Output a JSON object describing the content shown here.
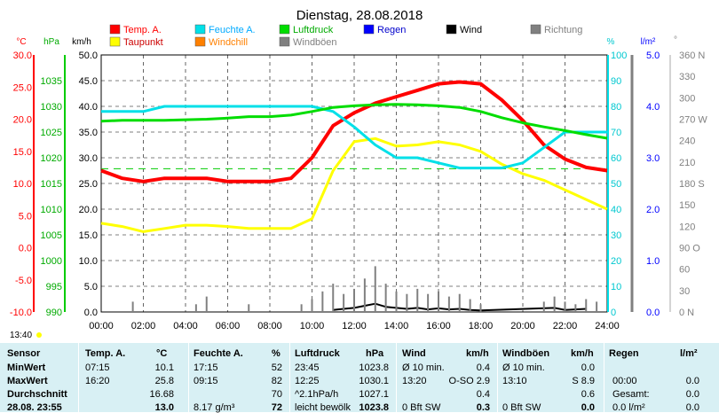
{
  "chart_data": {
    "type": "line",
    "title": "Dienstag, 28.08.2018",
    "x_ticks": [
      "00:00",
      "02:00",
      "04:00",
      "06:00",
      "08:00",
      "10:00",
      "12:00",
      "14:00",
      "16:00",
      "18:00",
      "20:00",
      "22:00",
      "24:00"
    ],
    "axes": {
      "temp_c": {
        "label": "°C",
        "ticks": [
          "30.0",
          "25.0",
          "20.0",
          "15.0",
          "10.0",
          "5.0",
          "0.0",
          "-5.0",
          "-10.0"
        ],
        "range": [
          -10,
          30
        ]
      },
      "pressure_hpa": {
        "label": "hPa",
        "ticks": [
          "1035",
          "1030",
          "1025",
          "1020",
          "1015",
          "1010",
          "1005",
          "1000",
          "995",
          "990"
        ],
        "range": [
          990,
          1040
        ]
      },
      "wind_kmh": {
        "label": "km/h",
        "ticks": [
          "50.0",
          "45.0",
          "40.0",
          "35.0",
          "30.0",
          "25.0",
          "20.0",
          "15.0",
          "10.0",
          "5.0",
          "0.0"
        ],
        "range": [
          0,
          50
        ]
      },
      "humidity_pct": {
        "label": "%",
        "ticks": [
          "100",
          "90",
          "80",
          "70",
          "60",
          "50",
          "40",
          "30",
          "20",
          "10",
          "0"
        ],
        "range": [
          0,
          100
        ]
      },
      "rain_lm2": {
        "label": "l/m²",
        "ticks": [
          "5.0",
          "4.0",
          "3.0",
          "2.0",
          "1.0",
          "0.0"
        ],
        "range": [
          0,
          5
        ]
      },
      "direction": {
        "label": "°",
        "ticks": [
          "360 N",
          "330",
          "300",
          "270 W",
          "240",
          "210",
          "180 S",
          "150",
          "120",
          "90 O",
          "60",
          "30",
          "0 N"
        ],
        "range": [
          0,
          360
        ]
      }
    },
    "legend": [
      {
        "name": "Temp. A.",
        "color": "#ff0000"
      },
      {
        "name": "Feuchte A.",
        "color": "#00e0e8"
      },
      {
        "name": "Luftdruck",
        "color": "#00dd00"
      },
      {
        "name": "Regen",
        "color": "#0000ff"
      },
      {
        "name": "Wind",
        "color": "#000000"
      },
      {
        "name": "Richtung",
        "color": "#808080"
      },
      {
        "name": "Taupunkt",
        "color": "#ffff00"
      },
      {
        "name": "Windchill",
        "color": "#ff8000"
      },
      {
        "name": "Windböen",
        "color": "#808080"
      }
    ],
    "series": [
      {
        "name": "Temp. A.",
        "axis": "temp_c",
        "x": [
          0,
          1,
          2,
          3,
          4,
          5,
          6,
          7,
          8,
          9,
          10,
          11,
          12,
          13,
          14,
          15,
          16,
          17,
          18,
          19,
          20,
          21,
          22,
          23,
          24
        ],
        "values": [
          12.0,
          10.8,
          10.3,
          10.8,
          10.8,
          10.8,
          10.3,
          10.3,
          10.3,
          10.8,
          14.0,
          19.0,
          21.0,
          22.5,
          23.5,
          24.5,
          25.5,
          25.8,
          25.5,
          23.0,
          19.8,
          16.0,
          13.8,
          12.5,
          12.0
        ]
      },
      {
        "name": "Taupunkt",
        "axis": "temp_c",
        "x": [
          0,
          1,
          2,
          3,
          4,
          5,
          6,
          7,
          8,
          9,
          10,
          11,
          12,
          13,
          14,
          15,
          16,
          17,
          18,
          19,
          20,
          21,
          22,
          23,
          24
        ],
        "values": [
          3.8,
          3.3,
          2.5,
          3.0,
          3.5,
          3.5,
          3.3,
          3.0,
          3.0,
          3.0,
          4.5,
          12.0,
          16.5,
          17.0,
          15.8,
          16.0,
          16.5,
          16.0,
          15.0,
          13.0,
          11.5,
          10.5,
          9.0,
          7.5,
          6.0
        ]
      },
      {
        "name": "Feuchte A.",
        "axis": "humidity_pct",
        "x": [
          0,
          1,
          2,
          3,
          4,
          5,
          6,
          7,
          8,
          9,
          10,
          11,
          12,
          13,
          14,
          15,
          16,
          17,
          18,
          19,
          20,
          21,
          22,
          23,
          24
        ],
        "values": [
          78,
          78,
          78,
          80,
          80,
          80,
          80,
          80,
          80,
          80,
          80,
          78,
          72,
          65,
          60,
          60,
          58,
          56,
          56,
          56,
          58,
          64,
          70,
          70,
          70
        ]
      },
      {
        "name": "Luftdruck",
        "axis": "pressure_hpa",
        "x": [
          0,
          1,
          2,
          3,
          4,
          5,
          6,
          7,
          8,
          9,
          10,
          11,
          12,
          13,
          14,
          15,
          16,
          17,
          18,
          19,
          20,
          21,
          22,
          23,
          24
        ],
        "values": [
          1027.1,
          1027.3,
          1027.3,
          1027.3,
          1027.4,
          1027.5,
          1027.7,
          1028.0,
          1028.0,
          1028.3,
          1029.0,
          1029.8,
          1030.1,
          1030.3,
          1030.4,
          1030.3,
          1030.1,
          1029.8,
          1029.0,
          1027.8,
          1026.8,
          1026.0,
          1025.3,
          1024.5,
          1023.8
        ]
      },
      {
        "name": "Wind",
        "axis": "wind_kmh",
        "x": [
          11,
          11.5,
          12,
          12.5,
          13,
          13.5,
          14,
          14.5,
          15,
          15.5,
          16,
          16.5,
          17,
          17.5,
          18,
          21.5,
          22,
          23
        ],
        "values": [
          0.4,
          0.6,
          0.8,
          1.2,
          1.6,
          1.0,
          0.8,
          0.6,
          0.8,
          0.5,
          0.7,
          0.5,
          0.6,
          0.4,
          0.3,
          0.8,
          0.4,
          0.6
        ]
      },
      {
        "name": "Windböen",
        "axis": "wind_kmh",
        "x": [
          1.5,
          4.5,
          5,
          7,
          9.5,
          10,
          10.5,
          11,
          11.5,
          12,
          12.5,
          13,
          13.5,
          14,
          14.5,
          15,
          15.5,
          16,
          16.5,
          17,
          17.5,
          18,
          21,
          21.5,
          22,
          22.5,
          23,
          23.5
        ],
        "values": [
          2.0,
          1.5,
          3.0,
          1.5,
          1.5,
          2.5,
          4.0,
          5.5,
          3.5,
          4.5,
          6.5,
          8.9,
          5.5,
          4.0,
          3.5,
          4.5,
          3.5,
          4.0,
          3.0,
          3.5,
          2.5,
          1.5,
          2.0,
          3.0,
          2.0,
          1.5,
          2.5,
          2.0
        ]
      }
    ],
    "timestamp_marker": "13:40"
  },
  "table": {
    "headers": [
      "Sensor",
      "Temp. A.",
      "°C",
      "Feuchte A.",
      "%",
      "Luftdruck",
      "hPa",
      "Wind",
      "km/h",
      "Windböen",
      "km/h",
      "Regen",
      "l/m²"
    ],
    "rows": [
      {
        "label": "MinWert",
        "t_time": "07:15",
        "t_val": "10.1",
        "h_time": "17:15",
        "h_val": "52",
        "p_time": "23:45",
        "p_val": "1023.8",
        "w_note": "Ø 10 min.",
        "w_val": "0.4",
        "g_note": "Ø 10 min.",
        "g_val": "0.0",
        "r_time": "",
        "r_val": ""
      },
      {
        "label": "MaxWert",
        "t_time": "16:20",
        "t_val": "25.8",
        "h_time": "09:15",
        "h_val": "82",
        "p_time": "12:25",
        "p_val": "1030.1",
        "w_note": "13:20",
        "w_val": "O-SO 2.9",
        "g_note": "13:10",
        "g_val": "S 8.9",
        "r_time": "00:00",
        "r_val": "0.0"
      },
      {
        "label": "Durchschnitt",
        "t_time": "",
        "t_val": "16.68",
        "h_time": "",
        "h_val": "70",
        "p_time": "^2.1hPa/h",
        "p_val": "1027.1",
        "w_note": "",
        "w_val": "0.4",
        "g_note": "",
        "g_val": "0.6",
        "r_time": "Gesamt:",
        "r_val": "0.0"
      },
      {
        "label": "28.08. 23:55",
        "t_time": "",
        "t_val": "13.0",
        "h_time": "8.17 g/m³",
        "h_val": "72",
        "p_time": "leicht bewölk",
        "p_val": "1023.8",
        "w_note": "0 Bft SW",
        "w_val": "0.3",
        "g_note": "0 Bft SW",
        "g_val": "0.0",
        "r_time": "0.0 l/m²",
        "r_val": "0.0"
      }
    ]
  }
}
